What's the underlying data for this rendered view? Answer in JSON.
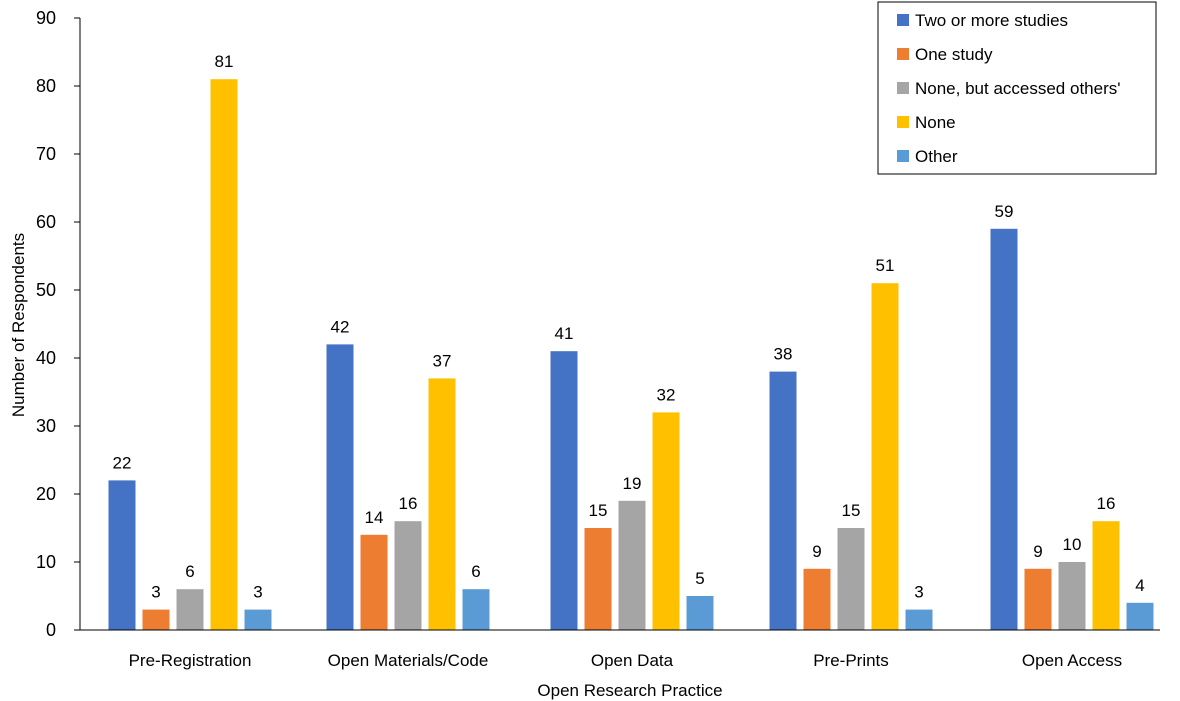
{
  "chart_data": {
    "type": "bar",
    "title": "",
    "xlabel": "Open Research Practice",
    "ylabel": "Number of Respondents",
    "ylim": [
      0,
      90
    ],
    "yticks": [
      0,
      10,
      20,
      30,
      40,
      50,
      60,
      70,
      80,
      90
    ],
    "grid": false,
    "legend_position": "top-right",
    "categories": [
      "Pre-Registration",
      "Open Materials/Code",
      "Open Data",
      "Pre-Prints",
      "Open Access"
    ],
    "series": [
      {
        "name": "Two or more studies",
        "color": "#4472C4",
        "values": [
          22,
          42,
          41,
          38,
          59
        ]
      },
      {
        "name": "One study",
        "color": "#ED7D31",
        "values": [
          3,
          14,
          15,
          9,
          9
        ]
      },
      {
        "name": "None, but accessed others'",
        "color": "#A5A5A5",
        "values": [
          6,
          16,
          19,
          15,
          10
        ]
      },
      {
        "name": "None",
        "color": "#FFC000",
        "values": [
          81,
          37,
          32,
          51,
          16
        ]
      },
      {
        "name": "Other",
        "color": "#5B9BD5",
        "values": [
          3,
          6,
          5,
          3,
          4
        ]
      }
    ]
  }
}
